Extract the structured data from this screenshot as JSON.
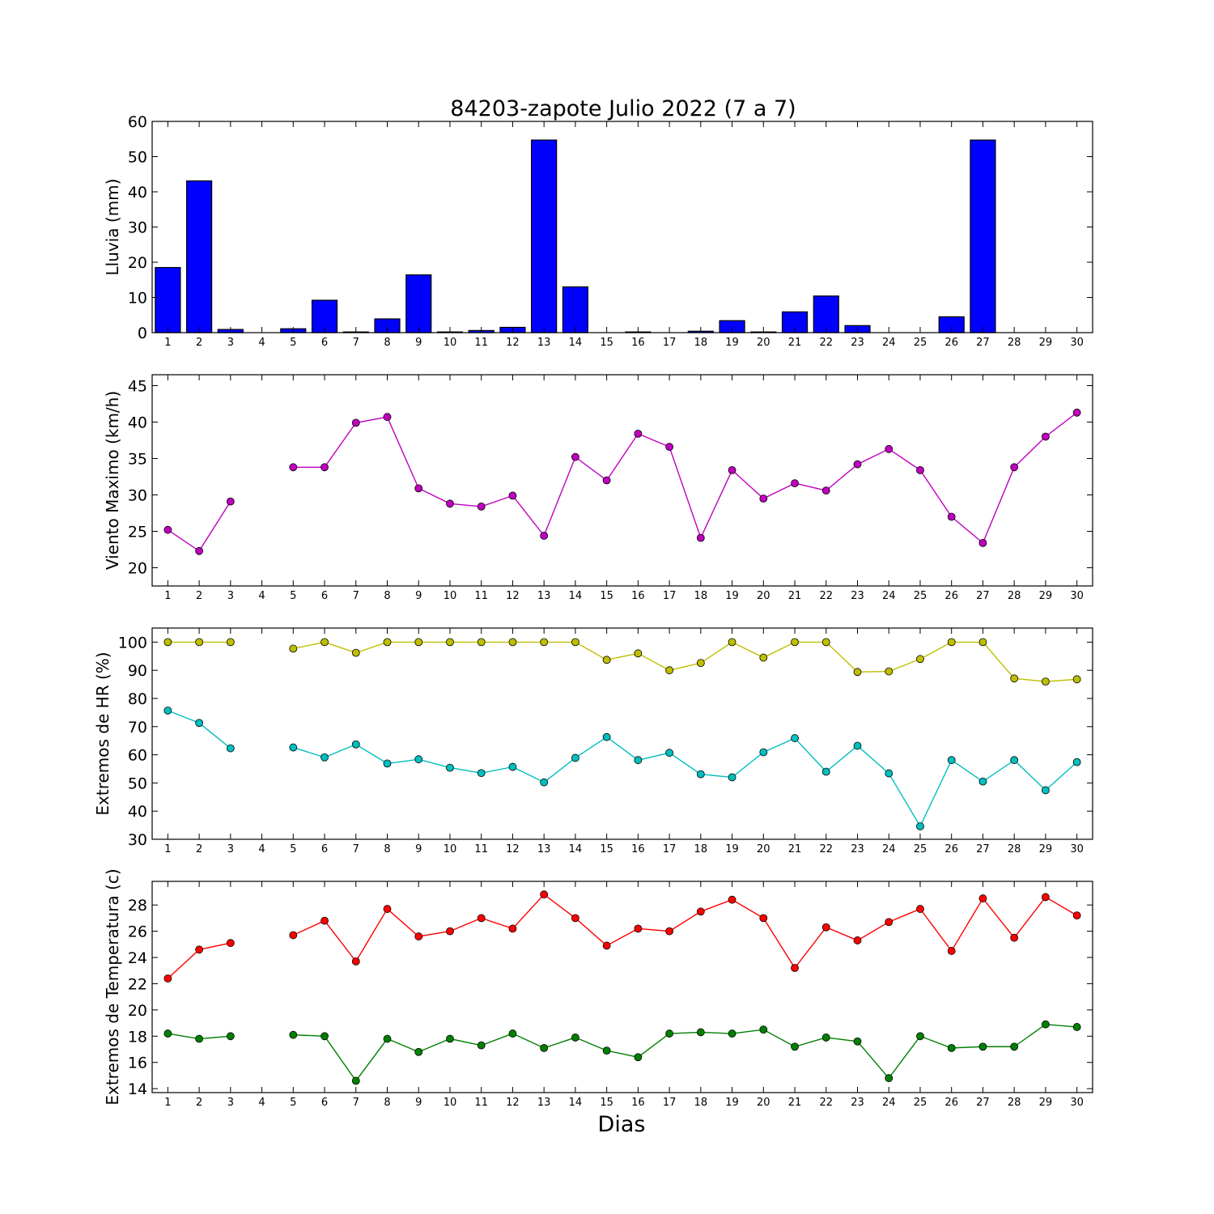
{
  "title": "84203-zapote Julio 2022  (7 a 7)",
  "xlabel": "Dias",
  "x_ticks": [
    1,
    2,
    3,
    4,
    5,
    6,
    7,
    8,
    9,
    10,
    11,
    12,
    13,
    14,
    15,
    16,
    17,
    18,
    19,
    20,
    21,
    22,
    23,
    24,
    25,
    26,
    27,
    28,
    29,
    30
  ],
  "chart_data": [
    {
      "type": "bar",
      "ylabel": "Lluvia (mm)",
      "ylim": [
        0,
        60
      ],
      "yticks": [
        0,
        10,
        20,
        30,
        40,
        50,
        60
      ],
      "categories": [
        1,
        2,
        3,
        4,
        5,
        6,
        7,
        8,
        9,
        10,
        11,
        12,
        13,
        14,
        15,
        16,
        17,
        18,
        19,
        20,
        21,
        22,
        23,
        24,
        25,
        26,
        27,
        28,
        29,
        30
      ],
      "series": [
        {
          "color": "#0000ff",
          "values": [
            18.5,
            43.1,
            0.9,
            0.0,
            1.1,
            9.2,
            0.2,
            3.9,
            16.4,
            0.2,
            0.6,
            1.5,
            54.7,
            13.0,
            0.0,
            0.2,
            0.0,
            0.4,
            3.4,
            0.2,
            5.9,
            10.4,
            2.0,
            0.0,
            0.0,
            4.5,
            54.7,
            0.0,
            0.0,
            0.0
          ]
        }
      ]
    },
    {
      "type": "line",
      "ylabel": "Viento Maximo (km/h)",
      "ylim": [
        17.5,
        46.5
      ],
      "yticks": [
        20,
        25,
        30,
        35,
        40,
        45
      ],
      "x": [
        1,
        2,
        3,
        4,
        5,
        6,
        7,
        8,
        9,
        10,
        11,
        12,
        13,
        14,
        15,
        16,
        17,
        18,
        19,
        20,
        21,
        22,
        23,
        24,
        25,
        26,
        27,
        28,
        29,
        30
      ],
      "series": [
        {
          "color": "#bf00bf",
          "values": [
            25.2,
            22.3,
            29.1,
            null,
            33.8,
            33.8,
            39.9,
            40.7,
            30.9,
            28.8,
            28.4,
            29.9,
            24.4,
            35.2,
            32.0,
            38.4,
            36.6,
            24.1,
            33.4,
            29.5,
            31.6,
            30.6,
            34.2,
            36.3,
            33.4,
            27.0,
            23.4,
            33.8,
            38.0,
            41.3
          ]
        }
      ]
    },
    {
      "type": "line",
      "ylabel": "Extremos de HR (%)",
      "ylim": [
        30,
        105
      ],
      "yticks": [
        30,
        40,
        50,
        60,
        70,
        80,
        90,
        100
      ],
      "x": [
        1,
        2,
        3,
        4,
        5,
        6,
        7,
        8,
        9,
        10,
        11,
        12,
        13,
        14,
        15,
        16,
        17,
        18,
        19,
        20,
        21,
        22,
        23,
        24,
        25,
        26,
        27,
        28,
        29,
        30
      ],
      "series": [
        {
          "color": "#bfbf00",
          "values": [
            100,
            100,
            100,
            null,
            97.7,
            100,
            96.2,
            100,
            100,
            100,
            100,
            100,
            100,
            100,
            93.7,
            96.0,
            90.0,
            92.6,
            100,
            94.5,
            100,
            100,
            89.4,
            89.6,
            94.0,
            100,
            100,
            87.1,
            86.0,
            86.8
          ]
        },
        {
          "color": "#00bfbf",
          "values": [
            75.7,
            71.3,
            62.3,
            null,
            62.6,
            59.1,
            63.7,
            56.9,
            58.4,
            55.4,
            53.5,
            55.7,
            50.2,
            58.9,
            66.3,
            58.1,
            60.7,
            53.1,
            52.0,
            60.9,
            65.9,
            54.0,
            63.2,
            53.4,
            34.6,
            58.1,
            50.5,
            58.1,
            47.4,
            57.4
          ]
        }
      ]
    },
    {
      "type": "line",
      "ylabel": "Extremos de Temperatura (c)",
      "ylim": [
        13.7,
        29.8
      ],
      "yticks": [
        14,
        16,
        18,
        20,
        22,
        24,
        26,
        28
      ],
      "x": [
        1,
        2,
        3,
        4,
        5,
        6,
        7,
        8,
        9,
        10,
        11,
        12,
        13,
        14,
        15,
        16,
        17,
        18,
        19,
        20,
        21,
        22,
        23,
        24,
        25,
        26,
        27,
        28,
        29,
        30
      ],
      "series": [
        {
          "color": "#ff0000",
          "values": [
            22.4,
            24.6,
            25.1,
            null,
            25.7,
            26.8,
            23.7,
            27.7,
            25.6,
            26.0,
            27.0,
            26.2,
            28.8,
            27.0,
            24.9,
            26.2,
            26.0,
            27.5,
            28.4,
            27.0,
            23.2,
            26.3,
            25.3,
            26.7,
            27.7,
            24.5,
            28.5,
            25.5,
            28.6,
            27.2
          ]
        },
        {
          "color": "#008000",
          "values": [
            18.2,
            17.8,
            18.0,
            null,
            18.1,
            18.0,
            14.6,
            17.8,
            16.8,
            17.8,
            17.3,
            18.2,
            17.1,
            17.9,
            16.9,
            16.4,
            18.2,
            18.3,
            18.2,
            18.5,
            17.2,
            17.9,
            17.6,
            14.8,
            18.0,
            17.1,
            17.2,
            17.2,
            18.9,
            18.7
          ]
        }
      ]
    }
  ]
}
